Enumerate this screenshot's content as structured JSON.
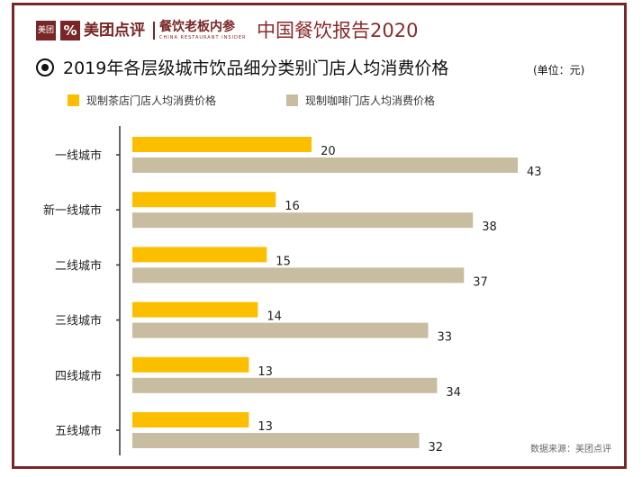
{
  "header": {
    "logo_box_text": "美团",
    "logo_mark_text": "%",
    "brand": "美团点评",
    "media_name": "餐饮老板内参",
    "media_sub": "CHINA RESTAURANT INSIDER",
    "report_title": "中国餐饮报告2020"
  },
  "colors": {
    "frame": "#7a2626",
    "tea": "#fcbf00",
    "coffee": "#c8bca1",
    "axis": "#333333"
  },
  "chart_data": {
    "type": "bar",
    "orientation": "horizontal",
    "title": "2019年各层级城市饮品细分类别门店人均消费价格",
    "unit": "(单位：元)",
    "categories": [
      "一线城市",
      "新一线城市",
      "二线城市",
      "三线城市",
      "四线城市",
      "五线城市"
    ],
    "series": [
      {
        "name": "现制茶店门店人均消费价格",
        "values": [
          20,
          16,
          15,
          14,
          13,
          13
        ]
      },
      {
        "name": "现制咖啡门店人均消费价格",
        "values": [
          43,
          38,
          37,
          33,
          34,
          32
        ]
      }
    ],
    "xlim": [
      0,
      43
    ],
    "grid": false,
    "legend_position": "top-left"
  },
  "source": "数据来源：美团点评"
}
